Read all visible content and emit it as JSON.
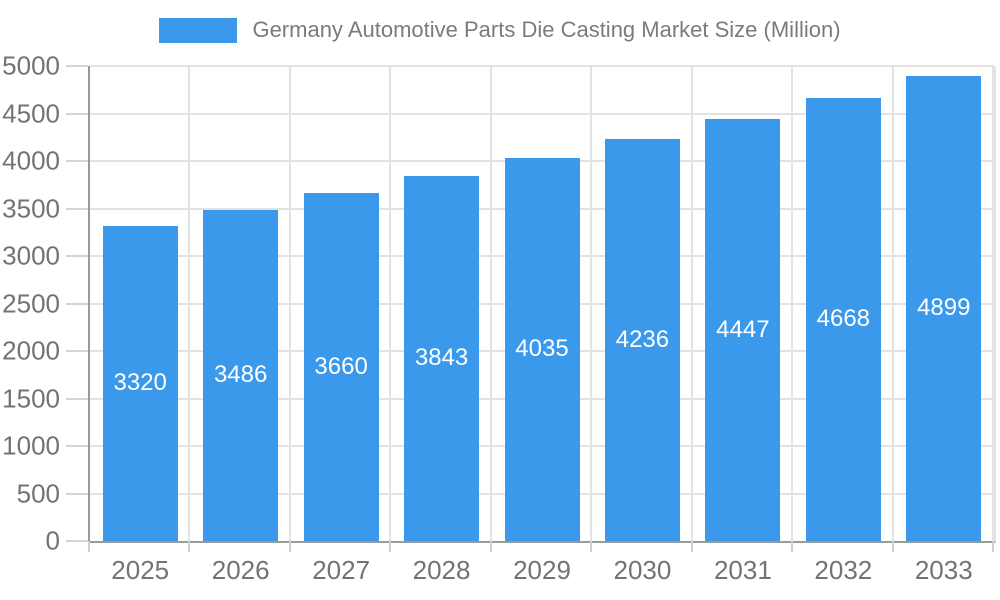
{
  "legend": {
    "label": "Germany Automotive Parts Die Casting Market Size (Million)",
    "swatch_color": "#3B99EC"
  },
  "chart_data": {
    "type": "bar",
    "title": "Germany Automotive Parts Die Casting Market Size (Million)",
    "categories": [
      "2025",
      "2026",
      "2027",
      "2028",
      "2029",
      "2030",
      "2031",
      "2032",
      "2033"
    ],
    "values": [
      3320,
      3486,
      3660,
      3843,
      4035,
      4236,
      4447,
      4668,
      4899
    ],
    "xlabel": "",
    "ylabel": "",
    "ylim": [
      0,
      5000
    ],
    "ytick_step": 500,
    "ytick_labels": [
      "0",
      "500",
      "1000",
      "1500",
      "2000",
      "2500",
      "3000",
      "3500",
      "4000",
      "4500",
      "5000"
    ],
    "grid": true,
    "legend_position": "top",
    "bar_color": "#3B99EC",
    "value_label_color": "#ffffff",
    "axis_text_color": "#737373"
  }
}
